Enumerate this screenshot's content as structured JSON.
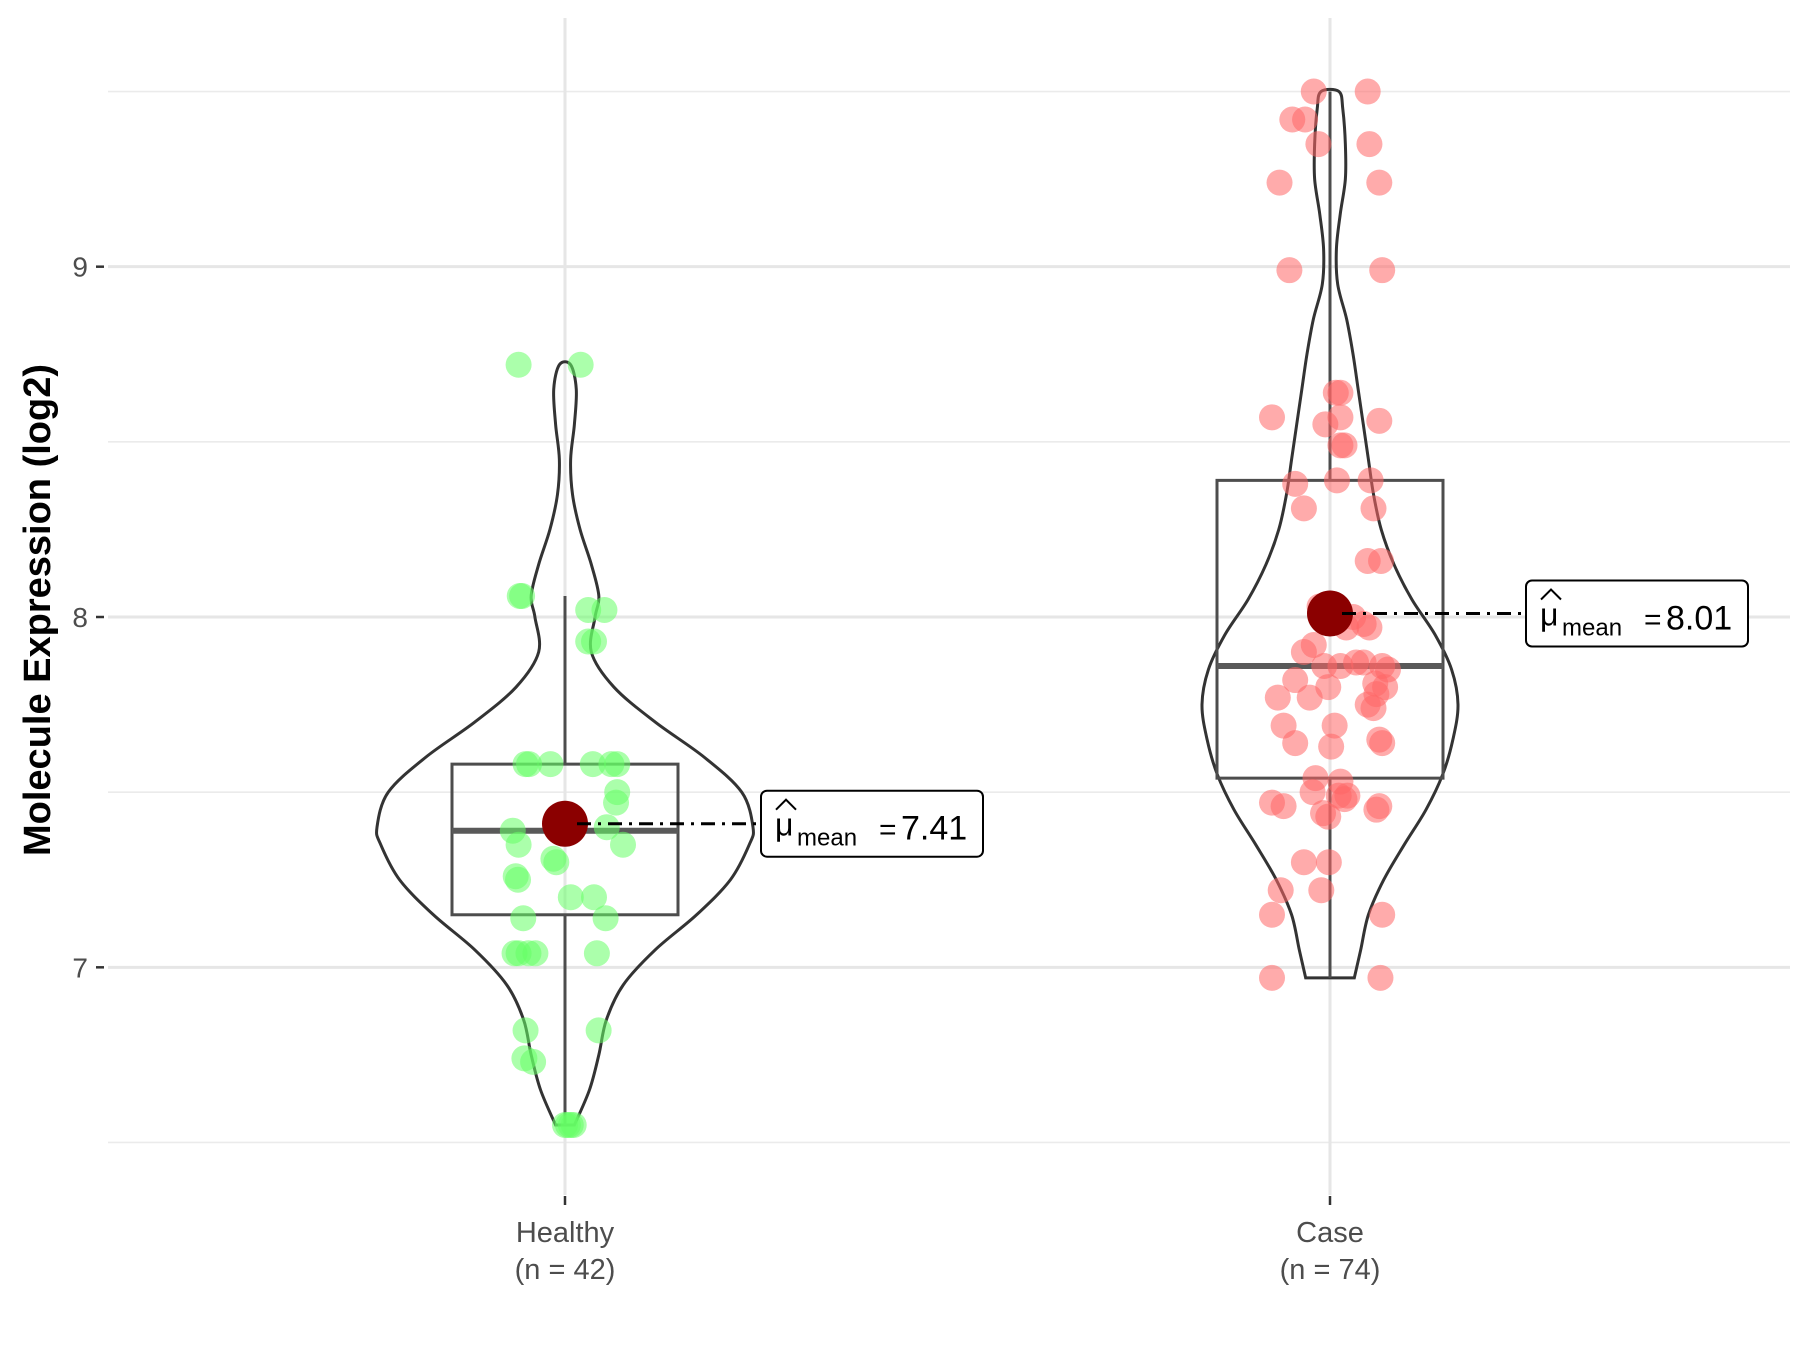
{
  "chart_data": {
    "type": "violin",
    "xlabel": "",
    "ylabel": "Molecule Expression (log2)",
    "ylim": [
      6.45,
      9.55
    ],
    "yticks": [
      7,
      8,
      9
    ],
    "grid": true,
    "mean_label_prefix": "μ",
    "mean_label_subscript": "mean",
    "groups": [
      {
        "label_line1": "Healthy",
        "label_line2": "(n = 42)",
        "n": 42,
        "color": "#66ff66",
        "mean": 7.41,
        "mean_text": "7.41",
        "box": {
          "q1": 7.15,
          "median": 7.39,
          "q3": 7.58,
          "whisker_low": 6.55,
          "whisker_high": 8.06
        },
        "violin_profile": [
          [
            6.55,
            0.05
          ],
          [
            6.65,
            0.13
          ],
          [
            6.75,
            0.18
          ],
          [
            6.85,
            0.22
          ],
          [
            6.95,
            0.31
          ],
          [
            7.05,
            0.48
          ],
          [
            7.15,
            0.7
          ],
          [
            7.25,
            0.88
          ],
          [
            7.35,
            0.98
          ],
          [
            7.4,
            1.0
          ],
          [
            7.5,
            0.94
          ],
          [
            7.6,
            0.74
          ],
          [
            7.7,
            0.48
          ],
          [
            7.8,
            0.26
          ],
          [
            7.9,
            0.14
          ],
          [
            8.0,
            0.16
          ],
          [
            8.06,
            0.18
          ],
          [
            8.15,
            0.14
          ],
          [
            8.25,
            0.08
          ],
          [
            8.35,
            0.04
          ],
          [
            8.45,
            0.03
          ],
          [
            8.55,
            0.05
          ],
          [
            8.65,
            0.06
          ],
          [
            8.72,
            0.03
          ]
        ],
        "points": [
          [
            -0.08,
            8.72
          ],
          [
            0.027,
            8.72
          ],
          [
            -0.074,
            8.06
          ],
          [
            -0.078,
            8.06
          ],
          [
            0.04,
            8.02
          ],
          [
            0.068,
            8.02
          ],
          [
            0.04,
            7.93
          ],
          [
            0.05,
            7.93
          ],
          [
            -0.068,
            7.58
          ],
          [
            -0.062,
            7.58
          ],
          [
            -0.025,
            7.58
          ],
          [
            0.048,
            7.58
          ],
          [
            0.08,
            7.58
          ],
          [
            0.09,
            7.58
          ],
          [
            0.09,
            7.5
          ],
          [
            0.088,
            7.47
          ],
          [
            -0.09,
            7.39
          ],
          [
            -0.08,
            7.35
          ],
          [
            -0.015,
            7.4
          ],
          [
            0.072,
            7.4
          ],
          [
            0.1,
            7.35
          ],
          [
            -0.02,
            7.31
          ],
          [
            -0.015,
            7.3
          ],
          [
            -0.085,
            7.26
          ],
          [
            -0.081,
            7.25
          ],
          [
            0.01,
            7.2
          ],
          [
            0.05,
            7.2
          ],
          [
            -0.072,
            7.14
          ],
          [
            0.07,
            7.14
          ],
          [
            -0.087,
            7.04
          ],
          [
            -0.08,
            7.04
          ],
          [
            -0.063,
            7.04
          ],
          [
            -0.051,
            7.04
          ],
          [
            0.055,
            7.04
          ],
          [
            -0.068,
            6.82
          ],
          [
            0.058,
            6.82
          ],
          [
            -0.07,
            6.74
          ],
          [
            -0.055,
            6.73
          ],
          [
            0.005,
            6.55
          ],
          [
            0.01,
            6.55
          ],
          [
            0.015,
            6.55
          ],
          [
            0.0,
            6.55
          ]
        ]
      },
      {
        "label_line1": "Case",
        "label_line2": "(n = 74)",
        "n": 74,
        "color": "#ff6666",
        "mean": 8.01,
        "mean_text": "8.01",
        "box": {
          "q1": 7.54,
          "median": 7.86,
          "q3": 8.39,
          "whisker_low": 6.97,
          "whisker_high": 9.5
        },
        "violin_profile": [
          [
            6.97,
            0.19
          ],
          [
            7.05,
            0.24
          ],
          [
            7.15,
            0.3
          ],
          [
            7.25,
            0.42
          ],
          [
            7.35,
            0.58
          ],
          [
            7.45,
            0.75
          ],
          [
            7.55,
            0.88
          ],
          [
            7.65,
            0.96
          ],
          [
            7.75,
            1.0
          ],
          [
            7.85,
            0.95
          ],
          [
            7.95,
            0.82
          ],
          [
            8.05,
            0.64
          ],
          [
            8.15,
            0.5
          ],
          [
            8.25,
            0.4
          ],
          [
            8.35,
            0.34
          ],
          [
            8.45,
            0.3
          ],
          [
            8.55,
            0.26
          ],
          [
            8.65,
            0.22
          ],
          [
            8.75,
            0.18
          ],
          [
            8.85,
            0.13
          ],
          [
            8.95,
            0.06
          ],
          [
            9.05,
            0.05
          ],
          [
            9.15,
            0.08
          ],
          [
            9.25,
            0.12
          ],
          [
            9.35,
            0.12
          ],
          [
            9.45,
            0.1
          ],
          [
            9.5,
            0.07
          ]
        ],
        "points": [
          [
            -0.028,
            9.5
          ],
          [
            0.065,
            9.5
          ],
          [
            -0.065,
            9.42
          ],
          [
            -0.043,
            9.42
          ],
          [
            -0.02,
            9.35
          ],
          [
            0.068,
            9.35
          ],
          [
            -0.087,
            9.24
          ],
          [
            0.085,
            9.24
          ],
          [
            -0.07,
            8.99
          ],
          [
            0.09,
            8.99
          ],
          [
            0.01,
            8.64
          ],
          [
            0.018,
            8.64
          ],
          [
            -0.1,
            8.57
          ],
          [
            0.018,
            8.57
          ],
          [
            0.085,
            8.56
          ],
          [
            -0.008,
            8.55
          ],
          [
            0.018,
            8.49
          ],
          [
            0.025,
            8.49
          ],
          [
            -0.06,
            8.38
          ],
          [
            0.012,
            8.39
          ],
          [
            0.07,
            8.39
          ],
          [
            -0.045,
            8.31
          ],
          [
            0.075,
            8.31
          ],
          [
            0.065,
            8.16
          ],
          [
            0.088,
            8.16
          ],
          [
            -0.018,
            8.03
          ],
          [
            0.005,
            8.03
          ],
          [
            0.04,
            8.0
          ],
          [
            0.028,
            7.97
          ],
          [
            0.068,
            7.97
          ],
          [
            0.058,
            7.98
          ],
          [
            -0.028,
            7.92
          ],
          [
            -0.045,
            7.9
          ],
          [
            -0.01,
            7.86
          ],
          [
            0.018,
            7.86
          ],
          [
            0.045,
            7.87
          ],
          [
            0.09,
            7.86
          ],
          [
            0.1,
            7.85
          ],
          [
            0.058,
            7.87
          ],
          [
            -0.06,
            7.82
          ],
          [
            0.078,
            7.81
          ],
          [
            -0.003,
            7.8
          ],
          [
            0.08,
            7.78
          ],
          [
            0.095,
            7.8
          ],
          [
            -0.09,
            7.77
          ],
          [
            -0.035,
            7.77
          ],
          [
            0.075,
            7.74
          ],
          [
            0.065,
            7.75
          ],
          [
            -0.08,
            7.69
          ],
          [
            0.008,
            7.69
          ],
          [
            -0.06,
            7.64
          ],
          [
            0.002,
            7.63
          ],
          [
            0.085,
            7.65
          ],
          [
            0.09,
            7.64
          ],
          [
            0.018,
            7.53
          ],
          [
            -0.025,
            7.54
          ],
          [
            -0.03,
            7.5
          ],
          [
            0.015,
            7.49
          ],
          [
            0.03,
            7.49
          ],
          [
            0.025,
            7.48
          ],
          [
            -0.1,
            7.47
          ],
          [
            -0.08,
            7.46
          ],
          [
            0.085,
            7.46
          ],
          [
            0.08,
            7.45
          ],
          [
            -0.012,
            7.44
          ],
          [
            -0.003,
            7.43
          ],
          [
            -0.045,
            7.3
          ],
          [
            -0.002,
            7.3
          ],
          [
            -0.085,
            7.22
          ],
          [
            -0.015,
            7.22
          ],
          [
            -0.1,
            7.15
          ],
          [
            0.09,
            7.15
          ],
          [
            -0.1,
            6.97
          ],
          [
            0.087,
            6.97
          ]
        ]
      }
    ]
  }
}
